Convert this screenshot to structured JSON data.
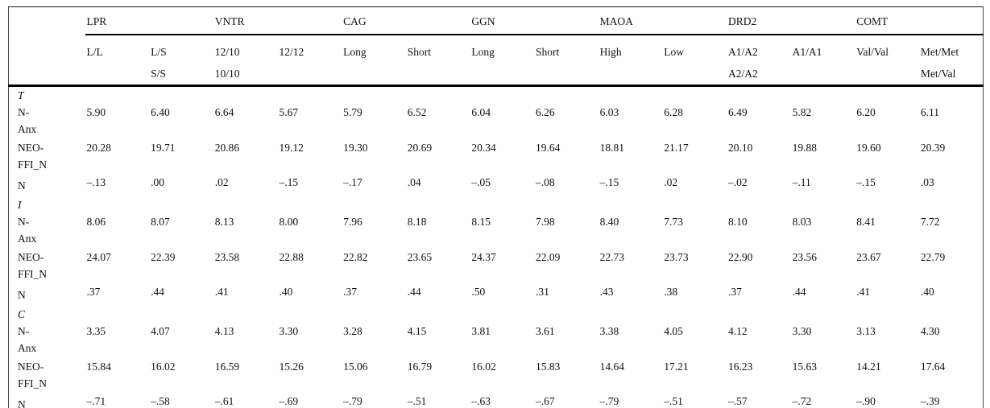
{
  "table": {
    "groups": [
      {
        "label": "LPR"
      },
      {
        "label": "VNTR"
      },
      {
        "label": "CAG"
      },
      {
        "label": "GGN"
      },
      {
        "label": "MAOA"
      },
      {
        "label": "DRD2"
      },
      {
        "label": "COMT"
      }
    ],
    "subheaders": [
      {
        "l1": "L/L",
        "l2": ""
      },
      {
        "l1": "L/S",
        "l2": "S/S"
      },
      {
        "l1": "12/10",
        "l2": "10/10"
      },
      {
        "l1": "12/12",
        "l2": ""
      },
      {
        "l1": "Long",
        "l2": ""
      },
      {
        "l1": "Short",
        "l2": ""
      },
      {
        "l1": "Long",
        "l2": ""
      },
      {
        "l1": "Short",
        "l2": ""
      },
      {
        "l1": "High",
        "l2": ""
      },
      {
        "l1": "Low",
        "l2": ""
      },
      {
        "l1": "A1/A2",
        "l2": "A2/A2"
      },
      {
        "l1": "A1/A1",
        "l2": ""
      },
      {
        "l1": "Val/Val",
        "l2": ""
      },
      {
        "l1": "Met/Met",
        "l2": "Met/Val"
      }
    ],
    "sections": [
      {
        "label": "T",
        "rows": [
          {
            "name": "N-Anx",
            "label_lines": [
              "N-",
              "Anx"
            ],
            "values": [
              "5.90",
              "6.40",
              "6.64",
              "5.67",
              "5.79",
              "6.52",
              "6.04",
              "6.26",
              "6.03",
              "6.28",
              "6.49",
              "5.82",
              "6.20",
              "6.11"
            ]
          },
          {
            "name": "NEO-FFI_N",
            "label_lines": [
              "NEO-",
              "FFI_N"
            ],
            "values": [
              "20.28",
              "19.71",
              "20.86",
              "19.12",
              "19.30",
              "20.69",
              "20.34",
              "19.64",
              "18.81",
              "21.17",
              "20.10",
              "19.88",
              "19.60",
              "20.39"
            ]
          },
          {
            "name": "N",
            "label_lines": [
              "N"
            ],
            "values": [
              "–.13",
              ".00",
              ".02",
              "–.15",
              "–.17",
              ".04",
              "–.05",
              "–.08",
              "–.15",
              ".02",
              "–.02",
              "–.11",
              "–.15",
              ".03"
            ]
          }
        ]
      },
      {
        "label": "I",
        "rows": [
          {
            "name": "N-Anx",
            "label_lines": [
              "N-",
              "Anx"
            ],
            "values": [
              "8.06",
              "8.07",
              "8.13",
              "8.00",
              "7.96",
              "8.18",
              "8.15",
              "7.98",
              "8.40",
              "7.73",
              "8.10",
              "8.03",
              "8.41",
              "7.72"
            ]
          },
          {
            "name": "NEO-FFI_N",
            "label_lines": [
              "NEO-",
              "FFI_N"
            ],
            "values": [
              "24.07",
              "22.39",
              "23.58",
              "22.88",
              "22.82",
              "23.65",
              "24.37",
              "22.09",
              "22.73",
              "23.73",
              "22.90",
              "23.56",
              "23.67",
              "22.79"
            ]
          },
          {
            "name": "N",
            "label_lines": [
              "N"
            ],
            "values": [
              ".37",
              ".44",
              ".41",
              ".40",
              ".37",
              ".44",
              ".50",
              ".31",
              ".43",
              ".38",
              ".37",
              ".44",
              ".41",
              ".40"
            ]
          }
        ]
      },
      {
        "label": "C",
        "rows": [
          {
            "name": "N-Anx",
            "label_lines": [
              "N-",
              "Anx"
            ],
            "values": [
              "3.35",
              "4.07",
              "4.13",
              "3.30",
              "3.28",
              "4.15",
              "3.81",
              "3.61",
              "3.38",
              "4.05",
              "4.12",
              "3.30",
              "3.13",
              "4.30"
            ]
          },
          {
            "name": "NEO-FFI_N",
            "label_lines": [
              "NEO-",
              "FFI_N"
            ],
            "values": [
              "15.84",
              "16.02",
              "16.59",
              "15.26",
              "15.06",
              "16.79",
              "16.02",
              "15.83",
              "14.64",
              "17.21",
              "16.23",
              "15.63",
              "14.21",
              "17.64"
            ]
          },
          {
            "name": "N",
            "label_lines": [
              "N"
            ],
            "values": [
              "–.71",
              "–.58",
              "–.61",
              "–.69",
              "–.79",
              "–.51",
              "–.63",
              "–.67",
              "–.79",
              "–.51",
              "–.57",
              "–.72",
              "–.90",
              "–.39"
            ]
          }
        ]
      }
    ],
    "colors": {
      "rule": "#000000",
      "text": "#111111",
      "background": "#ffffff"
    }
  }
}
